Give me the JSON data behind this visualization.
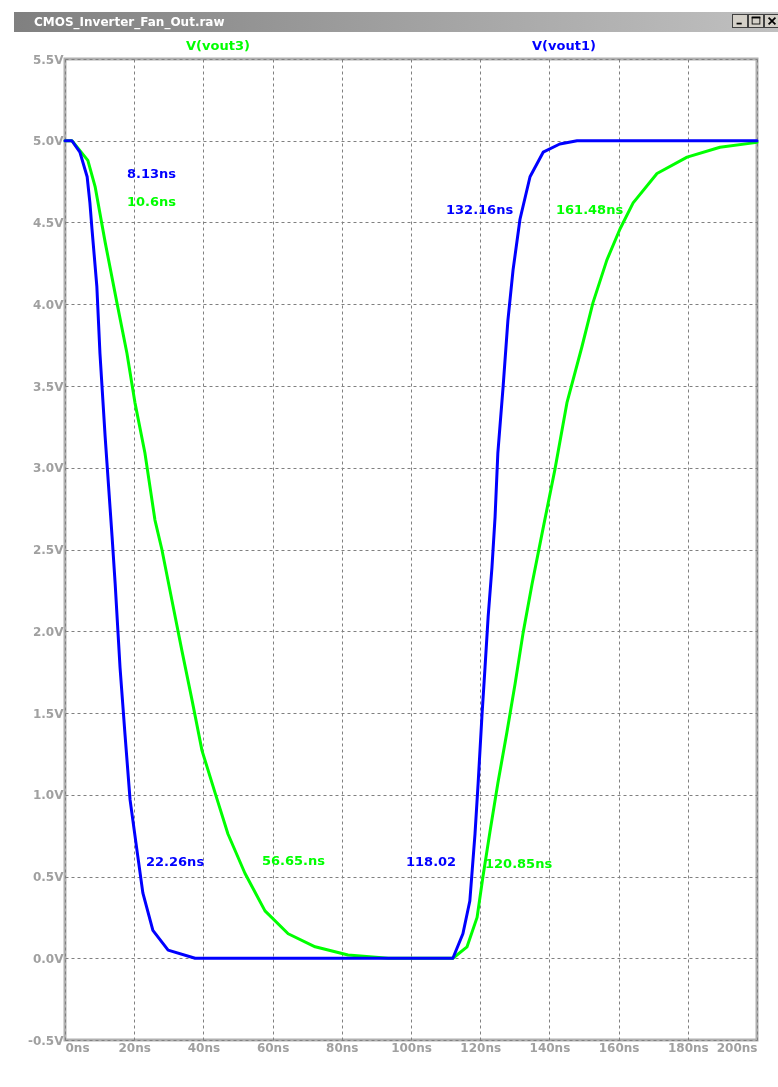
{
  "chart_data": {
    "type": "line",
    "title": "CMOS_Inverter_Fan_Out.raw",
    "xlim": [
      0,
      200
    ],
    "ylim": [
      -0.5,
      5.5
    ],
    "xticks": [
      {
        "value": 0,
        "label": "0ns"
      },
      {
        "value": 20,
        "label": "20ns"
      },
      {
        "value": 40,
        "label": "40ns"
      },
      {
        "value": 60,
        "label": "60ns"
      },
      {
        "value": 80,
        "label": "80ns"
      },
      {
        "value": 100,
        "label": "100ns"
      },
      {
        "value": 120,
        "label": "120ns"
      },
      {
        "value": 140,
        "label": "140ns"
      },
      {
        "value": 160,
        "label": "160ns"
      },
      {
        "value": 180,
        "label": "180ns"
      },
      {
        "value": 200,
        "label": "200ns"
      }
    ],
    "yticks": [
      {
        "value": -0.5,
        "label": "-0.5V"
      },
      {
        "value": 0,
        "label": "0.0V"
      },
      {
        "value": 0.5,
        "label": "0.5V"
      },
      {
        "value": 1,
        "label": "1.0V"
      },
      {
        "value": 1.5,
        "label": "1.5V"
      },
      {
        "value": 2,
        "label": "2.0V"
      },
      {
        "value": 2.5,
        "label": "2.5V"
      },
      {
        "value": 3,
        "label": "3.0V"
      },
      {
        "value": 3.5,
        "label": "3.5V"
      },
      {
        "value": 4,
        "label": "4.0V"
      },
      {
        "value": 4.5,
        "label": "4.5V"
      },
      {
        "value": 5,
        "label": "5.0V"
      },
      {
        "value": 5.5,
        "label": "5.5V"
      }
    ],
    "grid": true,
    "legend": "top",
    "line_style": "solid",
    "marker": "none",
    "series": [
      {
        "name": "V(vout3)",
        "color": "#00ff00",
        "x": [
          0,
          2,
          6.6,
          8.7,
          11.6,
          15.0,
          17.9,
          20.2,
          23.1,
          26.0,
          28.0,
          30.9,
          33.8,
          36.7,
          39.6,
          43.4,
          47.1,
          52.0,
          57.8,
          64.5,
          72.3,
          81.8,
          93.4,
          112.1,
          116.2,
          119.1,
          120.8,
          122.8,
          125.1,
          127.7,
          130.1,
          132.4,
          135.0,
          137.9,
          141.6,
          145.1,
          149.4,
          152.6,
          156.6,
          160.4,
          164.2,
          171.1,
          179.8,
          189.3,
          200
        ],
        "values": [
          5.0,
          5.0,
          4.88,
          4.72,
          4.38,
          4.01,
          3.7,
          3.4,
          3.09,
          2.68,
          2.5,
          2.19,
          1.88,
          1.58,
          1.27,
          1.01,
          0.76,
          0.52,
          0.29,
          0.15,
          0.07,
          0.02,
          0.0,
          0.0,
          0.07,
          0.25,
          0.5,
          0.77,
          1.07,
          1.38,
          1.68,
          1.99,
          2.29,
          2.6,
          2.99,
          3.4,
          3.74,
          4.01,
          4.27,
          4.46,
          4.62,
          4.8,
          4.9,
          4.96,
          4.99
        ]
      },
      {
        "name": "V(vout1)",
        "color": "#0000ff",
        "x": [
          0,
          2,
          4.3,
          6.4,
          7.2,
          7.8,
          9.2,
          10.1,
          11.6,
          13.6,
          14.5,
          15.9,
          17.3,
          18.8,
          20.8,
          22.5,
          25.4,
          29.8,
          37.6,
          112.1,
          115.0,
          117.0,
          118.5,
          119.4,
          120.5,
          121.4,
          122.3,
          123.4,
          124.3,
          125.1,
          126.6,
          128.0,
          129.5,
          131.5,
          134.4,
          138.2,
          143.0,
          148.0,
          200
        ],
        "values": [
          5.0,
          5.0,
          4.93,
          4.78,
          4.62,
          4.46,
          4.11,
          3.7,
          3.19,
          2.58,
          2.29,
          1.78,
          1.38,
          0.97,
          0.66,
          0.4,
          0.17,
          0.05,
          0.0,
          0.0,
          0.15,
          0.35,
          0.76,
          1.07,
          1.48,
          1.78,
          2.09,
          2.39,
          2.7,
          3.09,
          3.49,
          3.9,
          4.21,
          4.52,
          4.78,
          4.93,
          4.98,
          5.0,
          5.0
        ]
      }
    ],
    "annotations": [
      "10.6ns",
      "8.13ns",
      "56.65.ns",
      "22.26ns",
      "120.85ns",
      "118.02",
      "161.48ns",
      "132.16ns"
    ]
  }
}
